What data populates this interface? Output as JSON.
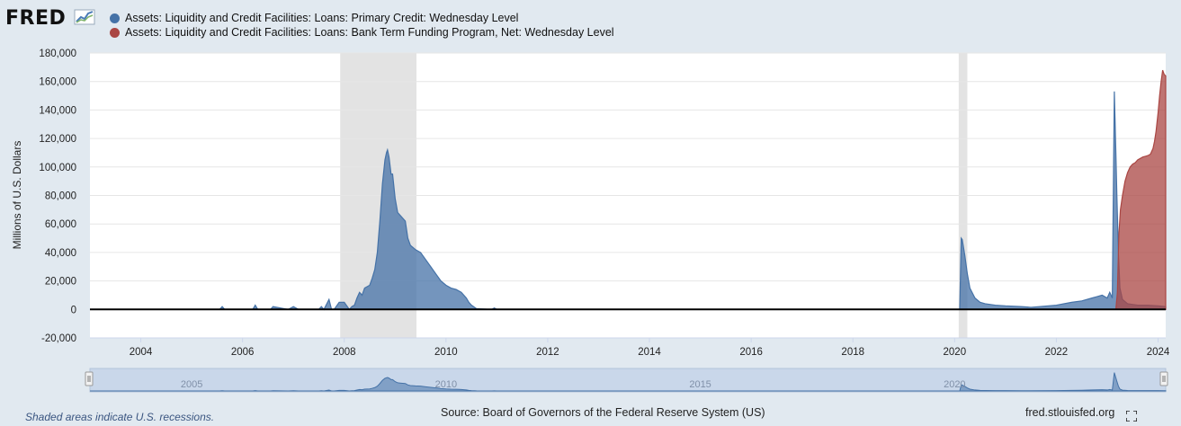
{
  "logo": {
    "text": "FRED"
  },
  "legend": {
    "series1": "Assets: Liquidity and Credit Facilities: Loans: Primary Credit: Wednesday Level",
    "series2": "Assets: Liquidity and Credit Facilities: Loans: Bank Term Funding Program, Net: Wednesday Level"
  },
  "footer": {
    "recession_note": "Shaded areas indicate U.S. recessions.",
    "source": "Source: Board of Governors of the Federal Reserve System (US)",
    "url": "fred.stlouisfed.org"
  },
  "chart_data": {
    "type": "area",
    "ylabel": "Millions of U.S. Dollars",
    "ylim": [
      -20000,
      180000
    ],
    "xlim": [
      2003.0,
      2024.15
    ],
    "yticks": [
      -20000,
      0,
      20000,
      40000,
      60000,
      80000,
      100000,
      120000,
      140000,
      160000,
      180000
    ],
    "ytick_labels": [
      "-20,000",
      "0",
      "20,000",
      "40,000",
      "60,000",
      "80,000",
      "100,000",
      "120,000",
      "140,000",
      "160,000",
      "180,000"
    ],
    "xticks": [
      2004,
      2006,
      2008,
      2010,
      2012,
      2014,
      2016,
      2018,
      2020,
      2022,
      2024
    ],
    "xtick_labels": [
      "2004",
      "2006",
      "2008",
      "2010",
      "2012",
      "2014",
      "2016",
      "2018",
      "2020",
      "2022",
      "2024"
    ],
    "grid": true,
    "recessions": [
      [
        2007.92,
        2009.42
      ],
      [
        2020.08,
        2020.25
      ]
    ],
    "navigator": {
      "labels": [
        "2005",
        "2010",
        "2015",
        "2020"
      ],
      "positions": [
        2005,
        2010,
        2015,
        2020
      ]
    },
    "series": [
      {
        "name": "Assets: Liquidity and Credit Facilities: Loans: Primary Credit: Wednesday Level",
        "color": "#4572a7",
        "x": [
          2003.0,
          2005.55,
          2005.6,
          2005.65,
          2006.2,
          2006.25,
          2006.3,
          2006.55,
          2006.6,
          2006.9,
          2007.0,
          2007.1,
          2007.5,
          2007.55,
          2007.6,
          2007.7,
          2007.75,
          2007.8,
          2007.9,
          2008.0,
          2008.1,
          2008.15,
          2008.2,
          2008.25,
          2008.3,
          2008.35,
          2008.4,
          2008.5,
          2008.55,
          2008.6,
          2008.65,
          2008.7,
          2008.75,
          2008.8,
          2008.83,
          2008.85,
          2008.88,
          2008.92,
          2008.95,
          2009.0,
          2009.05,
          2009.1,
          2009.2,
          2009.25,
          2009.3,
          2009.4,
          2009.5,
          2009.6,
          2009.7,
          2009.8,
          2009.9,
          2010.0,
          2010.1,
          2010.2,
          2010.3,
          2010.4,
          2010.45,
          2010.5,
          2010.6,
          2010.9,
          2010.95,
          2011.0,
          2020.1,
          2020.13,
          2020.15,
          2020.2,
          2020.25,
          2020.3,
          2020.4,
          2020.5,
          2020.6,
          2020.8,
          2021.0,
          2021.3,
          2021.5,
          2022.0,
          2022.3,
          2022.5,
          2022.7,
          2022.8,
          2022.9,
          2023.0,
          2023.05,
          2023.1,
          2023.14,
          2023.17,
          2023.19,
          2023.22,
          2023.25,
          2023.3,
          2023.4,
          2023.6,
          2023.8,
          2024.0,
          2024.15
        ],
        "y": [
          0,
          0,
          2000,
          0,
          0,
          3000,
          0,
          0,
          2000,
          0,
          2000,
          0,
          0,
          2000,
          0,
          7000,
          0,
          0,
          5000,
          5000,
          0,
          2000,
          3000,
          8000,
          12000,
          10000,
          15000,
          17000,
          22000,
          28000,
          40000,
          62000,
          88000,
          105000,
          110000,
          112000,
          107000,
          95000,
          95000,
          78000,
          68000,
          66000,
          62000,
          50000,
          45000,
          42000,
          40000,
          35000,
          30000,
          25000,
          20000,
          17000,
          15000,
          14000,
          12000,
          8000,
          5000,
          3000,
          500,
          0,
          1000,
          0,
          0,
          50000,
          49000,
          38000,
          25000,
          15000,
          8000,
          5000,
          4000,
          3000,
          2500,
          2000,
          1500,
          3000,
          5000,
          6000,
          8000,
          9000,
          10000,
          8000,
          12000,
          8000,
          153000,
          110000,
          80000,
          40000,
          15000,
          7000,
          4000,
          3000,
          3000,
          2500,
          2000
        ]
      },
      {
        "name": "Assets: Liquidity and Credit Facilities: Loans: Bank Term Funding Program, Net: Wednesday Level",
        "color": "#aa4643",
        "x": [
          2023.17,
          2023.2,
          2023.23,
          2023.26,
          2023.3,
          2023.35,
          2023.4,
          2023.45,
          2023.5,
          2023.55,
          2023.6,
          2023.65,
          2023.7,
          2023.75,
          2023.8,
          2023.85,
          2023.9,
          2023.93,
          2023.96,
          2024.0,
          2024.03,
          2024.06,
          2024.09,
          2024.12,
          2024.15
        ],
        "y": [
          0,
          12000,
          53000,
          70000,
          80000,
          90000,
          96000,
          100000,
          102000,
          103000,
          105000,
          106000,
          107000,
          107500,
          108000,
          109000,
          113000,
          118000,
          125000,
          138000,
          150000,
          160000,
          168000,
          165000,
          164000
        ]
      }
    ]
  }
}
